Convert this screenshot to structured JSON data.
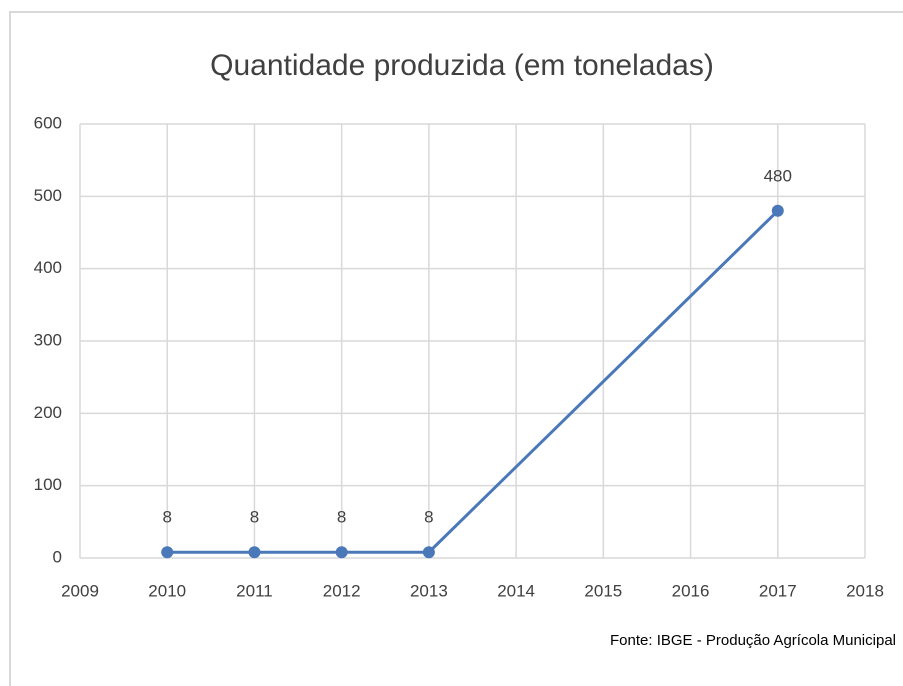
{
  "chart_data": {
    "type": "line",
    "title": "Quantidade produzida (em toneladas)",
    "x": [
      2010,
      2011,
      2012,
      2013,
      2017
    ],
    "series": [
      {
        "name": "Quantidade produzida",
        "color": "#4a78b8",
        "values": [
          8,
          8,
          8,
          8,
          480
        ]
      }
    ],
    "xlim": [
      2009,
      2018
    ],
    "xticks": [
      2009,
      2010,
      2011,
      2012,
      2013,
      2014,
      2015,
      2016,
      2017,
      2018
    ],
    "ylim": [
      0,
      600
    ],
    "yticks": [
      0,
      100,
      200,
      300,
      400,
      500,
      600
    ],
    "grid": true,
    "data_labels": true,
    "source": "Fonte: IBGE - Produção Agrícola Municipal"
  }
}
